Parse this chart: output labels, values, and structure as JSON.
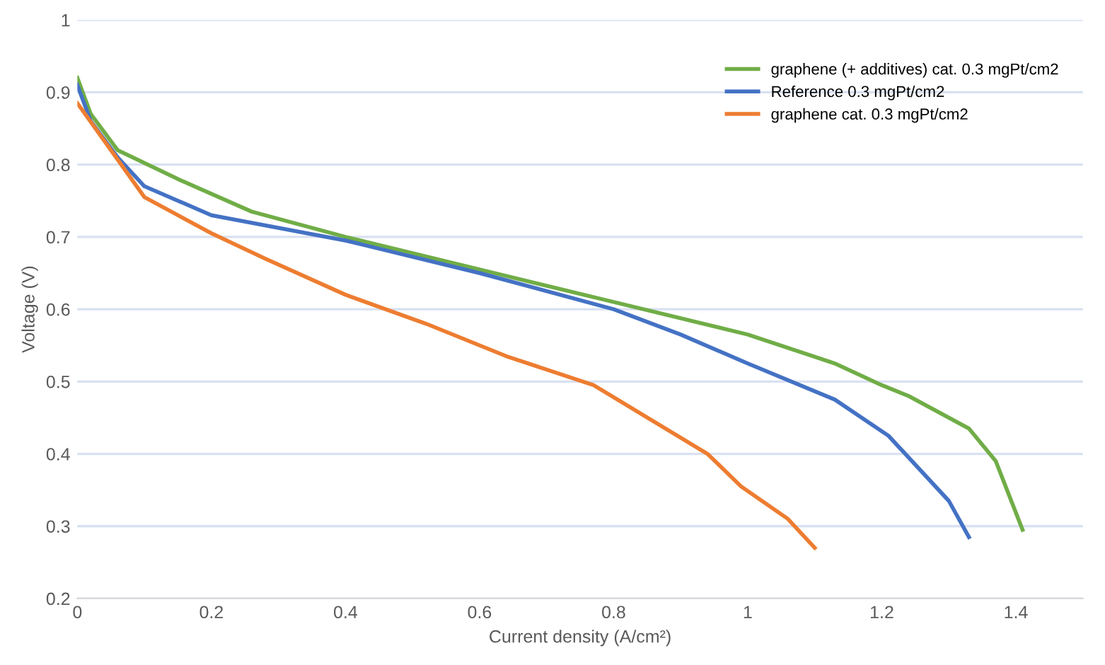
{
  "chart_data": {
    "type": "line",
    "xlabel": "Current density (A/cm²)",
    "ylabel": "Voltage (V)",
    "xlim": [
      0,
      1.5
    ],
    "xticks": [
      0,
      0.2,
      0.4,
      0.6,
      0.8,
      1,
      1.2,
      1.4
    ],
    "ylim": [
      0.2,
      1
    ],
    "yticks": [
      0.2,
      0.3,
      0.4,
      0.5,
      0.6,
      0.7,
      0.8,
      0.9,
      1
    ],
    "grid": "y",
    "legend": "top right",
    "marker": "none",
    "line_style": "solid",
    "series": [
      {
        "name": "graphene (+ additives) cat. 0.3 mgPt/cm2",
        "color": "#70ad47",
        "x": [
          0,
          0.02,
          0.06,
          0.15,
          0.26,
          0.4,
          0.6,
          0.8,
          1.0,
          1.13,
          1.2,
          1.24,
          1.33,
          1.37,
          1.41
        ],
        "values": [
          0.92,
          0.87,
          0.82,
          0.78,
          0.735,
          0.7,
          0.655,
          0.61,
          0.565,
          0.525,
          0.495,
          0.48,
          0.435,
          0.39,
          0.295
        ]
      },
      {
        "name": "Reference 0.3 mgPt/cm2",
        "color": "#4472c4",
        "x": [
          0,
          0.02,
          0.06,
          0.1,
          0.2,
          0.4,
          0.6,
          0.8,
          0.9,
          1.0,
          1.13,
          1.21,
          1.3,
          1.33
        ],
        "values": [
          0.91,
          0.86,
          0.81,
          0.77,
          0.73,
          0.695,
          0.65,
          0.6,
          0.565,
          0.525,
          0.475,
          0.425,
          0.335,
          0.285
        ]
      },
      {
        "name": "graphene cat. 0.3 mgPt/cm2",
        "color": "#ed7d31",
        "x": [
          0,
          0.05,
          0.1,
          0.2,
          0.28,
          0.4,
          0.52,
          0.64,
          0.77,
          0.94,
          0.99,
          1.06,
          1.1
        ],
        "values": [
          0.885,
          0.82,
          0.755,
          0.705,
          0.67,
          0.62,
          0.58,
          0.535,
          0.495,
          0.4,
          0.355,
          0.31,
          0.27
        ]
      }
    ]
  }
}
